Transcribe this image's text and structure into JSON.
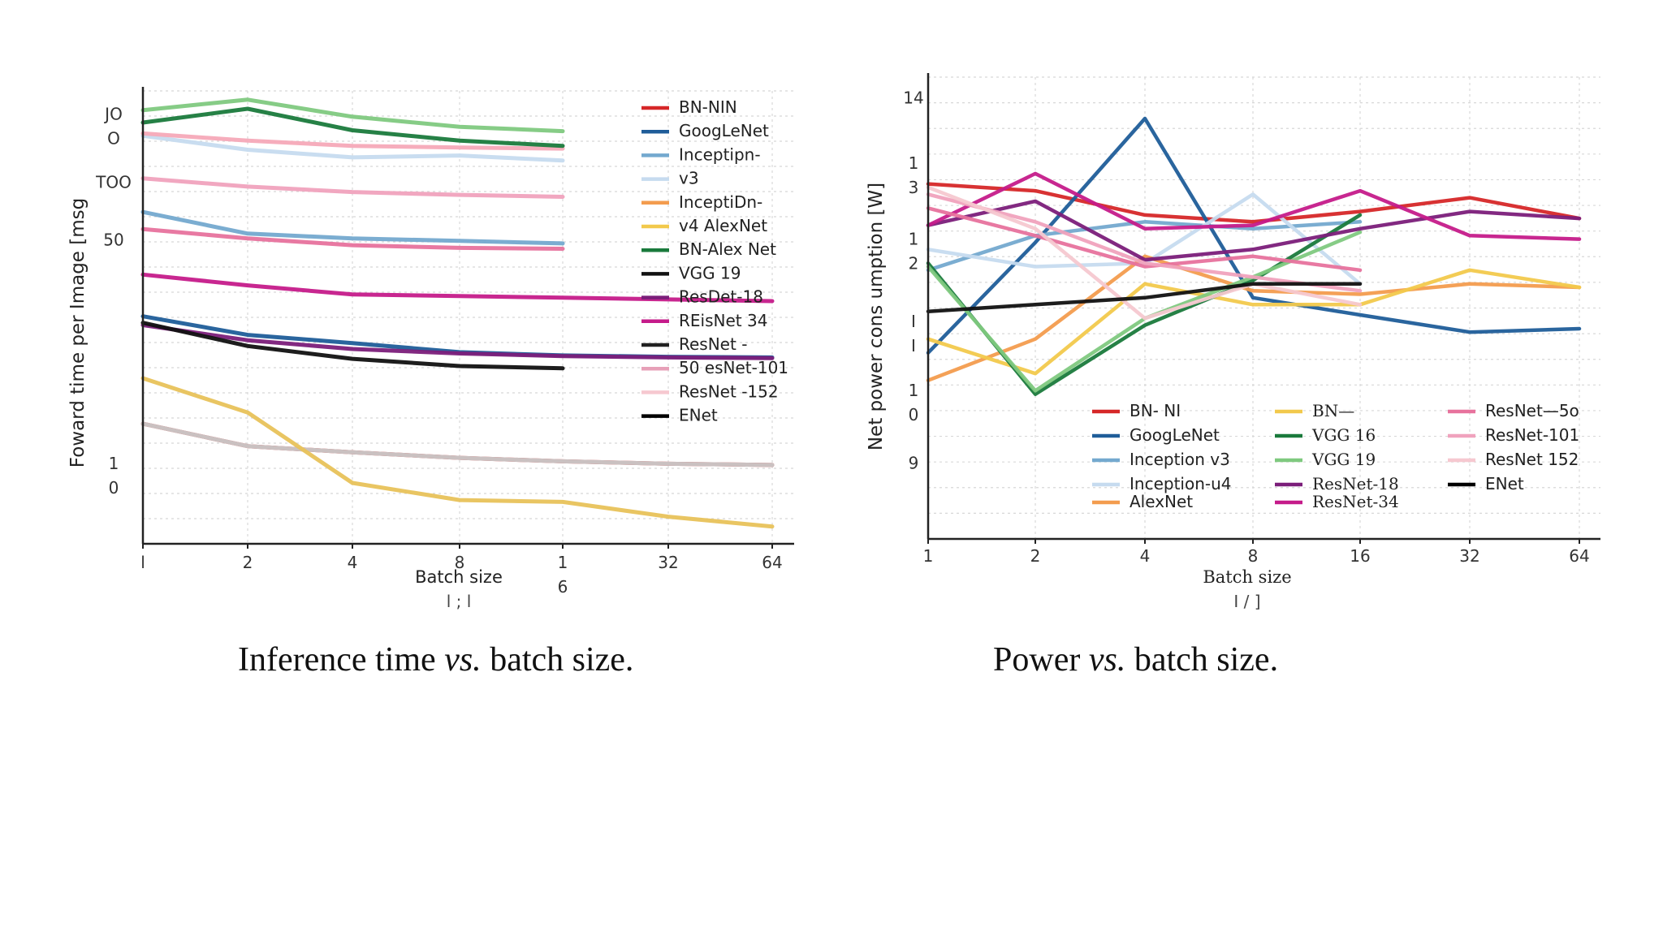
{
  "captions": {
    "left": {
      "before": "Inference  time ",
      "em": "vs.",
      "after": "  batch size."
    },
    "right": {
      "before": "Power ",
      "em": "vs.",
      "after": " batch size."
    }
  },
  "chart_data": [
    {
      "type": "line",
      "title": "",
      "xlabel": "Batch size",
      "ylabel": "Foward time per Image [msg",
      "x_scale": "log2",
      "x_ticks": [
        1,
        2,
        4,
        8,
        16,
        32,
        64
      ],
      "x_tick_labels": [
        "l",
        "2",
        "4",
        "8",
        "1\n6",
        "32",
        "64"
      ],
      "x_sublabel": "l ; l",
      "y_scale": "log",
      "ylim": [
        1.3,
        300
      ],
      "y_ticks": [
        {
          "value": 200,
          "label": "JO\nO"
        },
        {
          "value": 100,
          "label": "TOO"
        },
        {
          "value": 50,
          "label": "50"
        },
        {
          "value": 3,
          "label": "1\n0"
        }
      ],
      "grid": true,
      "legend_position": "top-right",
      "series": [
        {
          "name": "BN-NIN",
          "color": "#d62728",
          "x": [
            1,
            2,
            4,
            8,
            16,
            32,
            64
          ],
          "values": [
            5.5,
            4.2,
            3.9,
            3.65,
            3.5,
            3.4,
            3.35
          ]
        },
        {
          "name": "GoogLeNet",
          "color": "#1f5d99",
          "x": [
            1,
            2,
            4,
            8,
            16,
            32,
            64
          ],
          "values": [
            20,
            16,
            14.5,
            13,
            12.5,
            12.3,
            12.2
          ]
        },
        {
          "name": "Inceptipn-v3",
          "color": "#74a9cf",
          "x": [
            1,
            2,
            4,
            8,
            16
          ],
          "values": [
            70,
            54,
            51,
            49.5,
            48
          ]
        },
        {
          "name": "InceptiDn-v4 AlexNet",
          "color": "#c6dbef",
          "x": [
            1,
            2,
            4,
            8,
            16
          ],
          "values": [
            175,
            148,
            135,
            138,
            130
          ]
        },
        {
          "name": "BN-AlexNet",
          "color": "#f5a9b8",
          "x": [
            1,
            2,
            4,
            8,
            16
          ],
          "values": [
            180,
            165,
            155,
            152,
            150
          ]
        },
        {
          "name": "BN-NIN",
          "color": "#c9c9c9",
          "x": [
            1,
            2,
            4,
            8,
            16,
            32,
            64
          ],
          "values": [
            5.5,
            4.2,
            3.9,
            3.65,
            3.5,
            3.4,
            3.35
          ]
        },
        {
          "name": "VGG 19",
          "color": "#7fc97f",
          "x": [
            1,
            2,
            4,
            8,
            16
          ],
          "values": [
            238,
            270,
            220,
            195,
            185
          ]
        },
        {
          "name": "VGG 16",
          "color": "#1a7a3c",
          "x": [
            1,
            2,
            4,
            8,
            16
          ],
          "values": [
            205,
            242,
            187,
            165,
            155
          ]
        },
        {
          "name": "ResDet-18",
          "color": "#7b1e7a",
          "x": [
            1,
            2,
            4,
            8,
            16,
            32,
            64
          ],
          "values": [
            18,
            15,
            13.5,
            12.8,
            12.4,
            12.2,
            12.1
          ]
        },
        {
          "name": "REisNet 34",
          "color": "#c51b8a",
          "x": [
            1,
            2,
            4,
            8,
            16,
            32,
            64
          ],
          "values": [
            33,
            29,
            26,
            25.5,
            25,
            24.5,
            24
          ]
        },
        {
          "name": "ResNet - 50",
          "color": "#111111",
          "x": [
            1,
            2,
            4,
            8,
            16
          ],
          "values": [
            18.5,
            14,
            12,
            11,
            10.7
          ]
        },
        {
          "name": "ResNet-101",
          "color": "#e7729d",
          "x": [
            1,
            2,
            4,
            8,
            16
          ],
          "values": [
            57,
            51,
            47,
            45.5,
            45
          ]
        },
        {
          "name": "ResNet -152",
          "color": "#f0a2bd",
          "x": [
            1,
            2,
            4,
            8,
            16
          ],
          "values": [
            105,
            95,
            89,
            86,
            84
          ]
        },
        {
          "name": "ENet",
          "color": "#e8c25a",
          "x": [
            1,
            2,
            4,
            8,
            16,
            32,
            64
          ],
          "values": [
            9.5,
            6.3,
            2.7,
            2.2,
            2.15,
            1.8,
            1.6
          ]
        }
      ],
      "legend": [
        {
          "name": "BN-NIN",
          "color": "#d62728"
        },
        {
          "name": "GoogLeNet",
          "color": "#1f5d99"
        },
        {
          "name": "Inceptipn-",
          "color": "#74a9cf"
        },
        {
          "name": "v3",
          "color": "#c6dbef"
        },
        {
          "name": "InceptiDn-",
          "color": "#f39c4e"
        },
        {
          "name": "v4 AlexNet",
          "color": "#f2c94c"
        },
        {
          "name": "BN-Alex Net",
          "color": "#1a7a3c"
        },
        {
          "name": "VGG 19",
          "color": "#111111"
        },
        {
          "name": "ResDet-18",
          "color": "#7b1e7a"
        },
        {
          "name": "REisNet  34",
          "color": "#c51b8a"
        },
        {
          "name": "ResNet -",
          "color": "#222222"
        },
        {
          "name": "50 esNet-101",
          "color": "#e7a0b8"
        },
        {
          "name": "ResNet -152",
          "color": "#f6c8d0"
        },
        {
          "name": "ENet",
          "color": "#000000"
        }
      ]
    },
    {
      "type": "line",
      "title": "",
      "xlabel": "Batch size",
      "ylabel": "Net power cons umption [W]",
      "x_scale": "log2",
      "x_ticks": [
        1,
        2,
        4,
        8,
        16,
        32,
        64
      ],
      "x_tick_labels": [
        "1",
        "2",
        "4",
        "8",
        "16",
        "32",
        "64"
      ],
      "x_sublabel": "I / ]",
      "ylim": [
        80,
        147
      ],
      "y_ticks": [
        {
          "value": 144,
          "label": "14"
        },
        {
          "value": 133,
          "label": "1\n3"
        },
        {
          "value": 122,
          "label": "1\n2"
        },
        {
          "value": 110,
          "label": "I\nI"
        },
        {
          "value": 100,
          "label": "1\n0"
        },
        {
          "value": 91,
          "label": "9"
        }
      ],
      "grid": true,
      "legend_position": "lower-center",
      "series": [
        {
          "name": "BN- NI N",
          "color": "#d62728",
          "x": [
            1,
            2,
            4,
            8,
            16,
            32,
            64
          ],
          "values": [
            131.5,
            130.5,
            127,
            126,
            127.5,
            129.5,
            126.5
          ]
        },
        {
          "name": "GoogLeNet",
          "color": "#1f5d99",
          "x": [
            1,
            2,
            4,
            8,
            16,
            32,
            64
          ],
          "values": [
            107,
            123,
            141,
            115,
            112.5,
            110,
            110.5
          ]
        },
        {
          "name": "Inception  v3",
          "color": "#74a9cf",
          "x": [
            1,
            2,
            4,
            8,
            16
          ],
          "values": [
            119,
            124,
            126,
            125,
            126
          ]
        },
        {
          "name": "Inception-u4 AlexNet",
          "color": "#c6dbef",
          "x": [
            1,
            2,
            4,
            8,
            16
          ],
          "values": [
            122,
            119.5,
            120,
            130,
            117
          ]
        },
        {
          "name": "AlexNet",
          "color": "#f39c4e",
          "x": [
            1,
            2,
            4,
            8,
            16,
            32,
            64
          ],
          "values": [
            103,
            109,
            121,
            116,
            115.5,
            117,
            116.5
          ]
        },
        {
          "name": "BN— AlexNet",
          "color": "#f2c94c",
          "x": [
            1,
            2,
            4,
            8,
            16,
            32,
            64
          ],
          "values": [
            109,
            104,
            117,
            114,
            114,
            119,
            116.5
          ]
        },
        {
          "name": "VGG 16",
          "color": "#1a7a3c",
          "x": [
            1,
            2,
            4,
            8,
            16
          ],
          "values": [
            120,
            101,
            111,
            117.5,
            127
          ]
        },
        {
          "name": "VGG 19",
          "color": "#7fc97f",
          "x": [
            1,
            2,
            4,
            8,
            16
          ],
          "values": [
            119.5,
            101.5,
            112,
            118,
            124.5
          ]
        },
        {
          "name": "ResNet-18",
          "color": "#7b1e7a",
          "x": [
            1,
            2,
            4,
            8,
            16,
            32,
            64
          ],
          "values": [
            125.5,
            129,
            120.5,
            122,
            125,
            127.5,
            126.5
          ]
        },
        {
          "name": "ResNet-34",
          "color": "#c51b8a",
          "x": [
            1,
            2,
            4,
            8,
            16,
            32,
            64
          ],
          "values": [
            125.5,
            133,
            125,
            125.5,
            130.5,
            124,
            123.5
          ]
        },
        {
          "name": "ResNet—5o",
          "color": "#e7729d",
          "x": [
            1,
            2,
            4,
            8,
            16
          ],
          "values": [
            128,
            124,
            119.5,
            121,
            119
          ]
        },
        {
          "name": "ResNet-101",
          "color": "#f0a2bd",
          "x": [
            1,
            2,
            4,
            8,
            16
          ],
          "values": [
            130,
            126,
            120,
            118,
            116
          ]
        },
        {
          "name": "ResNet 152",
          "color": "#f6c8d0",
          "x": [
            1,
            2,
            4,
            8,
            16
          ],
          "values": [
            131,
            125,
            112,
            117,
            114
          ]
        },
        {
          "name": "ENet",
          "color": "#111111",
          "x": [
            1,
            2,
            4,
            8,
            16
          ],
          "values": [
            113,
            114,
            115,
            117,
            117
          ]
        }
      ],
      "legend": [
        {
          "name": "BN- NI",
          "color": "#d62728",
          "col": 0,
          "row": 0
        },
        {
          "name": "GoogLeNet",
          "color": "#1f5d99",
          "col": 0,
          "row": 1
        },
        {
          "name": "Inception  v3",
          "color": "#74a9cf",
          "col": 0,
          "row": 2
        },
        {
          "name": "Inception-u4",
          "color": "#c6dbef",
          "col": 0,
          "row": 3
        },
        {
          "name": "AlexNet",
          "color": "#f39c4e",
          "col": 0,
          "row": 4
        },
        {
          "name": "BN—",
          "color": "#f2c94c",
          "col": 1,
          "row": 0
        },
        {
          "name": "VGG 16",
          "color": "#1a7a3c",
          "col": 1,
          "row": 1
        },
        {
          "name": "VGG 19",
          "color": "#7fc97f",
          "col": 1,
          "row": 2
        },
        {
          "name": "ResNet-18",
          "color": "#7b1e7a",
          "col": 1,
          "row": 3
        },
        {
          "name": "ResNet-34",
          "color": "#c51b8a",
          "col": 1,
          "row": 4
        },
        {
          "name": "ResNet—5o",
          "color": "#e7729d",
          "col": 2,
          "row": 0
        },
        {
          "name": "ResNet-101",
          "color": "#f0a2bd",
          "col": 2,
          "row": 1
        },
        {
          "name": "ResNet 152",
          "color": "#f6c8d0",
          "col": 2,
          "row": 2
        },
        {
          "name": "ENet",
          "color": "#000000",
          "col": 2,
          "row": 3
        }
      ]
    }
  ]
}
